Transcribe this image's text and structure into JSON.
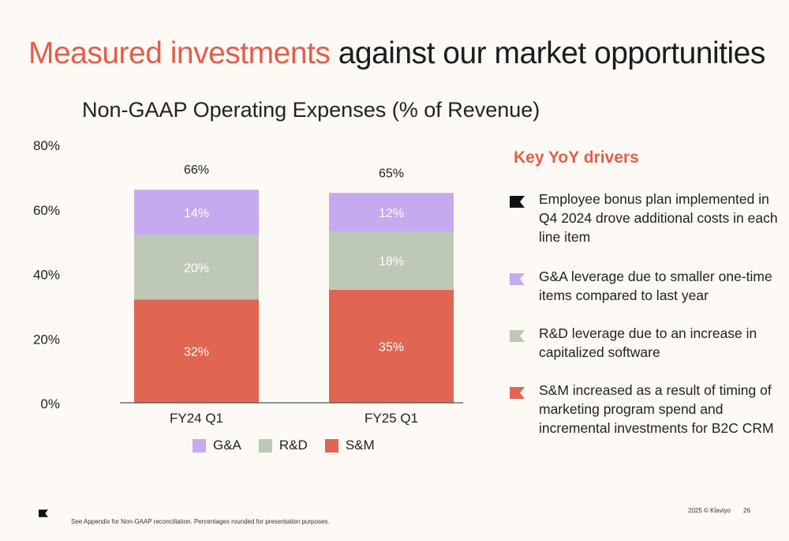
{
  "slide": {
    "title_accent": "Measured investments",
    "title_rest": "against our market opportunities"
  },
  "chart_data": {
    "type": "bar",
    "stacked": true,
    "title": "Non-GAAP Operating Expenses (% of Revenue)",
    "categories": [
      "FY24 Q1",
      "FY25 Q1"
    ],
    "series": [
      {
        "name": "S&M",
        "values": [
          32,
          35
        ],
        "labels": [
          "32%",
          "35%"
        ],
        "color": "#e06552"
      },
      {
        "name": "R&D",
        "values": [
          20,
          18
        ],
        "labels": [
          "20%",
          "18%"
        ],
        "color": "#bec8b6"
      },
      {
        "name": "G&A",
        "values": [
          14,
          12
        ],
        "labels": [
          "14%",
          "12%"
        ],
        "color": "#c5aaf0"
      }
    ],
    "totals": [
      66,
      65
    ],
    "total_labels": [
      "66%",
      "65%"
    ],
    "ylim": [
      0,
      80
    ],
    "yticks": [
      0,
      20,
      40,
      60,
      80
    ],
    "ytick_labels": [
      "0%",
      "20%",
      "40%",
      "60%",
      "80%"
    ],
    "grid": false,
    "legend": {
      "position": "bottom",
      "items": [
        {
          "name": "G&A",
          "color": "#c5aaf0"
        },
        {
          "name": "R&D",
          "color": "#bec8b6"
        },
        {
          "name": "S&M",
          "color": "#e06552"
        }
      ]
    }
  },
  "drivers": {
    "heading": "Key YoY drivers",
    "items": [
      {
        "text": "Employee bonus plan implemented in Q4 2024 drove additional costs in each line item",
        "icon": "flag-icon",
        "color": "#111111"
      },
      {
        "text": "G&A leverage due to smaller one-time items compared to last year",
        "icon": "flag-icon",
        "color": "#c5aaf0"
      },
      {
        "text": "R&D leverage due to an increase in capitalized software",
        "icon": "flag-icon",
        "color": "#bec8b6"
      },
      {
        "text": "S&M increased as a result of timing of marketing program spend and incremental investments for B2C CRM",
        "icon": "flag-icon",
        "color": "#e06552"
      }
    ]
  },
  "footer": {
    "footnote": "See Appendix for Non-GAAP reconciliation. Percentages rounded for presentation purposes.",
    "copyright": "2025 © Klaviyo",
    "page": "26"
  }
}
